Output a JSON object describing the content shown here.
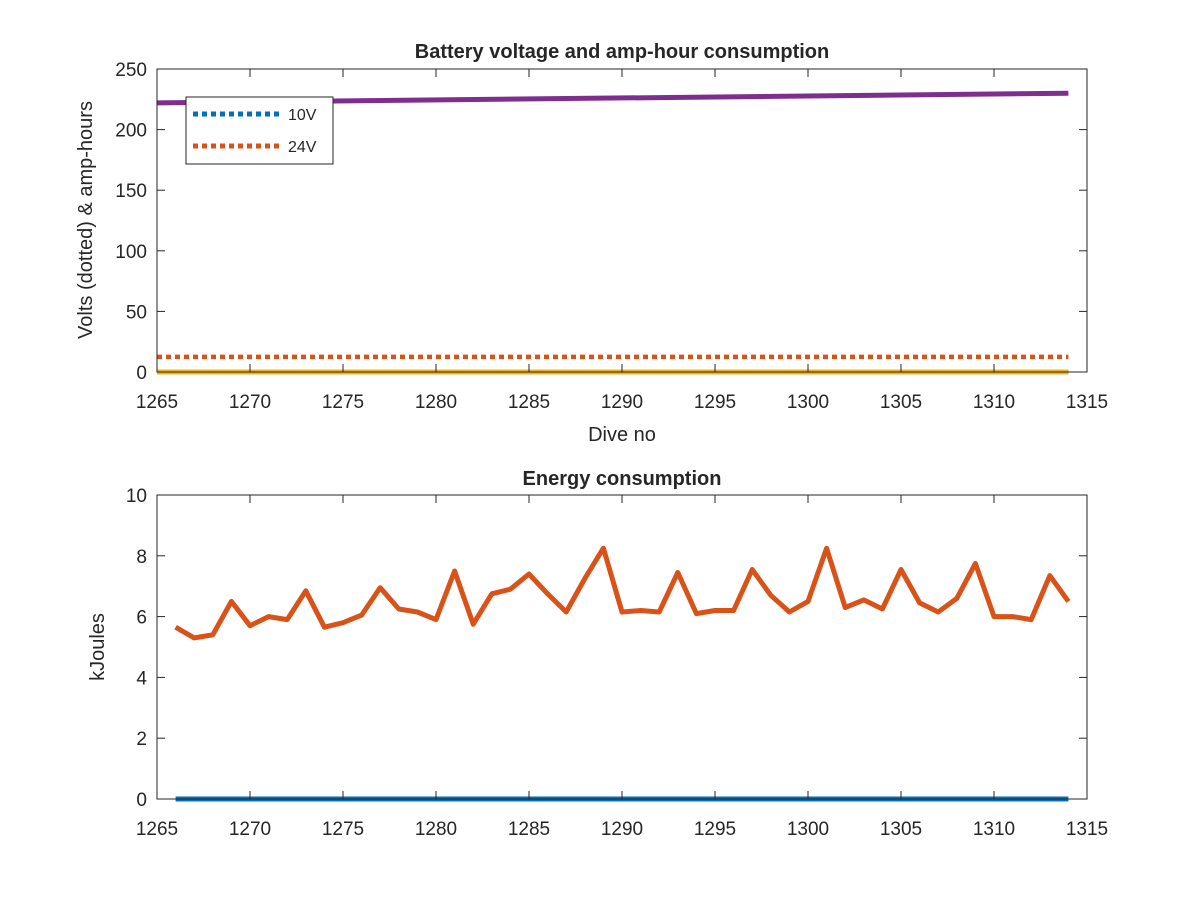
{
  "chart_data": [
    {
      "type": "line",
      "title": "Battery voltage and amp-hour consumption",
      "xlabel": "Dive no",
      "ylabel": "Volts (dotted) & amp-hours",
      "xlim": [
        1265,
        1315
      ],
      "ylim": [
        0,
        250
      ],
      "xticks": [
        1265,
        1270,
        1275,
        1280,
        1285,
        1290,
        1295,
        1300,
        1305,
        1310,
        1315
      ],
      "yticks": [
        0,
        50,
        100,
        150,
        200,
        250
      ],
      "grid": false,
      "legend_position": "top-left",
      "series": [
        {
          "name": "10V",
          "style": "dotted",
          "color": "#0072BD",
          "x": [
            1265,
            1314
          ],
          "y": [
            0,
            0
          ]
        },
        {
          "name": "24V",
          "style": "dotted",
          "color": "#D95319",
          "x": [
            1265,
            1314
          ],
          "y": [
            12.5,
            12.5
          ]
        },
        {
          "style": "solid",
          "color": "#EDB120",
          "x": [
            1265,
            1314
          ],
          "y": [
            0,
            0
          ]
        },
        {
          "style": "solid",
          "color": "#7E2F8E",
          "x": [
            1265,
            1314
          ],
          "y": [
            222,
            230
          ]
        }
      ]
    },
    {
      "type": "line",
      "title": "Energy consumption",
      "xlabel": "",
      "ylabel": "kJoules",
      "xlim": [
        1265,
        1315
      ],
      "ylim": [
        0,
        10
      ],
      "xticks": [
        1265,
        1270,
        1275,
        1280,
        1285,
        1290,
        1295,
        1300,
        1305,
        1310,
        1315
      ],
      "yticks": [
        0,
        2,
        4,
        6,
        8,
        10
      ],
      "grid": false,
      "series": [
        {
          "style": "solid",
          "color": "#0072BD",
          "x": [
            1266,
            1314
          ],
          "y": [
            0,
            0
          ]
        },
        {
          "style": "solid",
          "color": "#D95319",
          "x": [
            1266,
            1267,
            1268,
            1269,
            1270,
            1271,
            1272,
            1273,
            1274,
            1275,
            1276,
            1277,
            1278,
            1279,
            1280,
            1281,
            1282,
            1283,
            1284,
            1285,
            1286,
            1287,
            1288,
            1289,
            1290,
            1291,
            1292,
            1293,
            1294,
            1295,
            1296,
            1297,
            1298,
            1299,
            1300,
            1301,
            1302,
            1303,
            1304,
            1305,
            1306,
            1307,
            1308,
            1309,
            1310,
            1311,
            1312,
            1313,
            1314
          ],
          "y": [
            5.65,
            5.3,
            5.4,
            6.5,
            5.7,
            6.0,
            5.9,
            6.85,
            5.65,
            5.8,
            6.05,
            6.95,
            6.25,
            6.15,
            5.9,
            7.5,
            5.75,
            6.75,
            6.9,
            7.4,
            6.75,
            6.15,
            7.25,
            8.25,
            6.15,
            6.2,
            6.15,
            7.45,
            6.1,
            6.2,
            6.2,
            7.55,
            6.7,
            6.15,
            6.5,
            8.25,
            6.3,
            6.55,
            6.25,
            7.55,
            6.45,
            6.15,
            6.6,
            7.75,
            6.0,
            6.0,
            5.9,
            7.35,
            6.5
          ]
        }
      ]
    }
  ]
}
